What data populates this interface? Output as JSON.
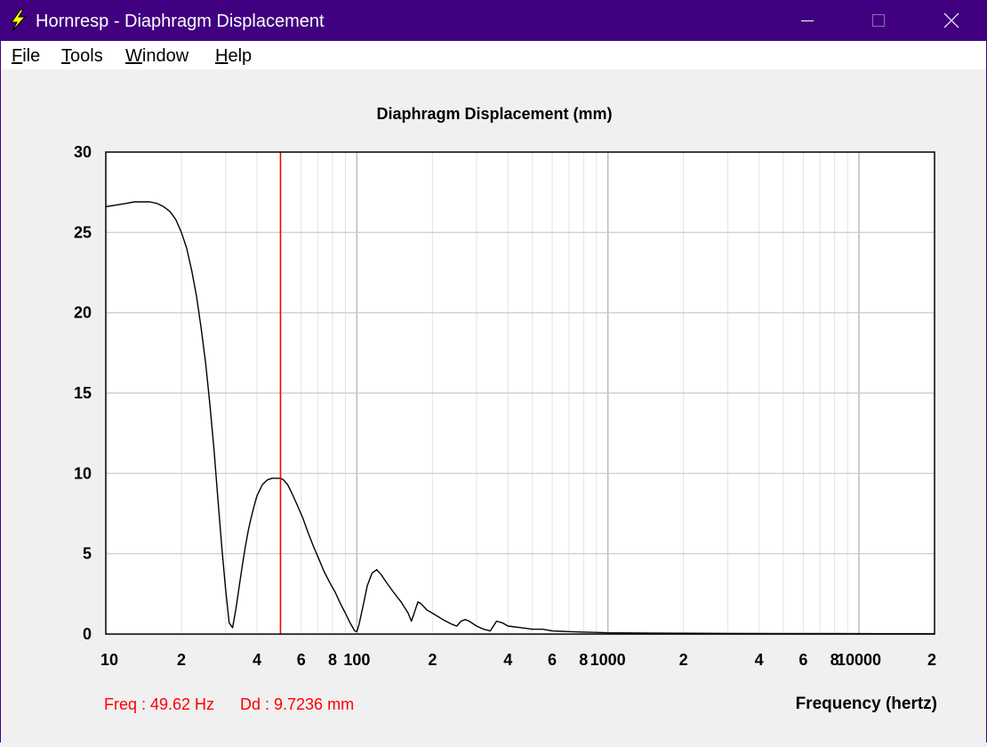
{
  "window": {
    "title": "Hornresp - Diaphragm Displacement",
    "icons": {
      "app": "lightning-bolt-icon",
      "minimize": "minimize-icon",
      "maximize": "maximize-icon",
      "close": "close-icon"
    }
  },
  "menu": {
    "items": [
      {
        "id": "file",
        "label": "File"
      },
      {
        "id": "tools",
        "label": "Tools"
      },
      {
        "id": "window",
        "label": "Window"
      },
      {
        "id": "help",
        "label": "Help"
      }
    ]
  },
  "readout": {
    "freq_text": "Freq : 49.62 Hz",
    "dd_text": "Dd : 9.7236 mm"
  },
  "chart_data": {
    "type": "line",
    "title": "Diaphragm Displacement (mm)",
    "xlabel": "Frequency (hertz)",
    "ylabel": "",
    "x_scale": "log",
    "xlim": [
      10,
      20000
    ],
    "ylim": [
      0,
      30
    ],
    "grid": true,
    "x_ticks": [
      {
        "value": 10,
        "label": "10"
      },
      {
        "value": 20,
        "label": "2"
      },
      {
        "value": 40,
        "label": "4"
      },
      {
        "value": 60,
        "label": "6"
      },
      {
        "value": 80,
        "label": "8"
      },
      {
        "value": 100,
        "label": "100"
      },
      {
        "value": 200,
        "label": "2"
      },
      {
        "value": 400,
        "label": "4"
      },
      {
        "value": 600,
        "label": "6"
      },
      {
        "value": 800,
        "label": "8"
      },
      {
        "value": 1000,
        "label": "1000"
      },
      {
        "value": 2000,
        "label": "2"
      },
      {
        "value": 4000,
        "label": "4"
      },
      {
        "value": 6000,
        "label": "6"
      },
      {
        "value": 8000,
        "label": "8"
      },
      {
        "value": 10000,
        "label": "10000"
      },
      {
        "value": 20000,
        "label": "2"
      }
    ],
    "y_ticks": [
      {
        "value": 0,
        "label": "0"
      },
      {
        "value": 5,
        "label": "5"
      },
      {
        "value": 10,
        "label": "10"
      },
      {
        "value": 15,
        "label": "15"
      },
      {
        "value": 20,
        "label": "20"
      },
      {
        "value": 25,
        "label": "25"
      },
      {
        "value": 30,
        "label": "30"
      }
    ],
    "series": [
      {
        "color": "#000000",
        "x": [
          10,
          11,
          12,
          13,
          14,
          15,
          16,
          17,
          18,
          19,
          20,
          21,
          22,
          23,
          24,
          25,
          26,
          27,
          28,
          29,
          30,
          31,
          32,
          33,
          34,
          35,
          36,
          37,
          38,
          39,
          40,
          42,
          44,
          46,
          48,
          49.62,
          51,
          53,
          55,
          58,
          61,
          64,
          67,
          70,
          74,
          78,
          82,
          86,
          90,
          94,
          98,
          100,
          102,
          106,
          110,
          115,
          120,
          125,
          130,
          140,
          150,
          160,
          165,
          170,
          175,
          180,
          190,
          200,
          210,
          220,
          240,
          250,
          260,
          270,
          280,
          300,
          320,
          340,
          350,
          360,
          380,
          400,
          450,
          500,
          520,
          550,
          600,
          700,
          800,
          900,
          1000,
          1500,
          2000,
          3000,
          5000,
          8000,
          12000,
          20000
        ],
        "y": [
          26.6,
          26.7,
          26.8,
          26.9,
          26.9,
          26.9,
          26.8,
          26.6,
          26.3,
          25.8,
          25.0,
          24.0,
          22.6,
          21.0,
          19.0,
          16.8,
          14.2,
          11.4,
          8.3,
          5.3,
          2.8,
          0.7,
          0.4,
          1.6,
          3.0,
          4.3,
          5.5,
          6.5,
          7.3,
          8.0,
          8.6,
          9.3,
          9.6,
          9.7,
          9.7,
          9.7,
          9.6,
          9.3,
          8.8,
          8.0,
          7.2,
          6.3,
          5.5,
          4.8,
          3.9,
          3.2,
          2.6,
          1.9,
          1.3,
          0.7,
          0.2,
          0.15,
          0.6,
          1.8,
          3.0,
          3.8,
          4.0,
          3.7,
          3.3,
          2.6,
          2.0,
          1.3,
          0.8,
          1.4,
          2.0,
          1.9,
          1.5,
          1.3,
          1.1,
          0.9,
          0.6,
          0.5,
          0.8,
          0.9,
          0.8,
          0.5,
          0.3,
          0.2,
          0.5,
          0.8,
          0.7,
          0.5,
          0.4,
          0.3,
          0.3,
          0.3,
          0.2,
          0.15,
          0.12,
          0.1,
          0.08,
          0.06,
          0.05,
          0.04,
          0.03,
          0.03,
          0.02,
          0.02
        ]
      }
    ],
    "cursor": {
      "x": 49.62,
      "color": "#ff0000"
    }
  }
}
